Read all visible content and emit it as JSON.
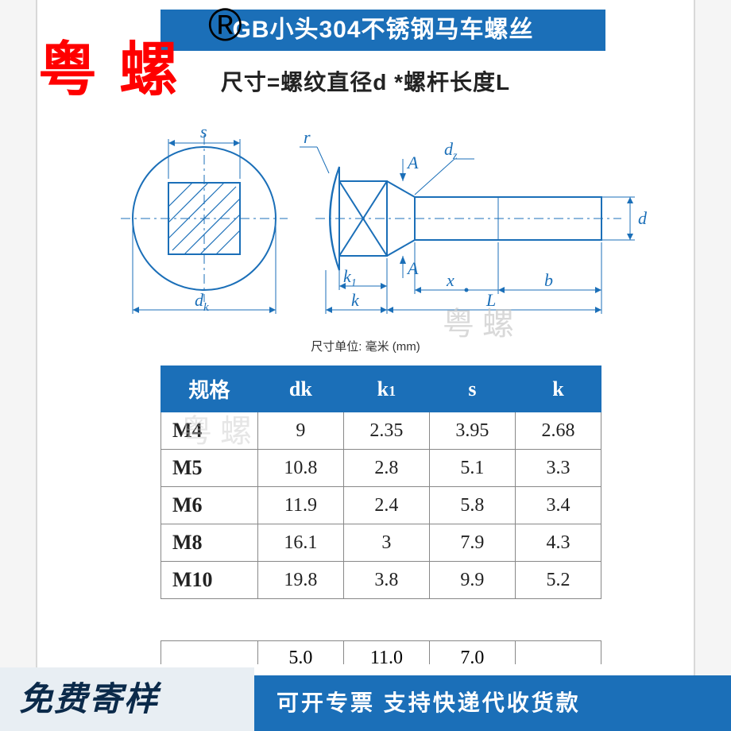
{
  "title": "GB小头304不锈钢马车螺丝",
  "subtitle": "尺寸=螺纹直径d *螺杆长度L",
  "unit_note": "尺寸单位: 毫米 (mm)",
  "brand_watermark": "粤螺",
  "registered_mark": "®",
  "gray_watermark": "粤螺",
  "diagram": {
    "stroke": "#1b6fb8",
    "labels": {
      "s": "s",
      "r": "r",
      "A_top": "A",
      "A_bot": "A",
      "dz": "d",
      "dz_sub": "z",
      "d": "d",
      "dk": "d",
      "dk_sub": "k",
      "k": "k",
      "k1": "k",
      "k1_sub": "1",
      "L": "L",
      "x": "x",
      "b": "b"
    }
  },
  "table": {
    "headers": [
      "规格",
      "dk",
      "k1",
      "s",
      "k"
    ],
    "col_widths": [
      "22%",
      "19.5%",
      "19.5%",
      "19.5%",
      "19.5%"
    ],
    "rows": [
      [
        "M4",
        "9",
        "2.35",
        "3.95",
        "2.68"
      ],
      [
        "M5",
        "10.8",
        "2.8",
        "5.1",
        "3.3"
      ],
      [
        "M6",
        "11.9",
        "2.4",
        "5.8",
        "3.4"
      ],
      [
        "M8",
        "16.1",
        "3",
        "7.9",
        "4.3"
      ],
      [
        "M10",
        "19.8",
        "3.8",
        "9.9",
        "5.2"
      ]
    ],
    "clipped_row": [
      "",
      "5.0",
      "11.0",
      "7.0",
      ""
    ]
  },
  "footer": {
    "left": "免费寄样",
    "right": "可开专票 支持快递代收货款"
  },
  "colors": {
    "brand_blue": "#1b6fb8",
    "brand_red": "#ff0000",
    "footer_left_bg": "#e8eef3",
    "footer_left_text": "#0b2a4a"
  }
}
